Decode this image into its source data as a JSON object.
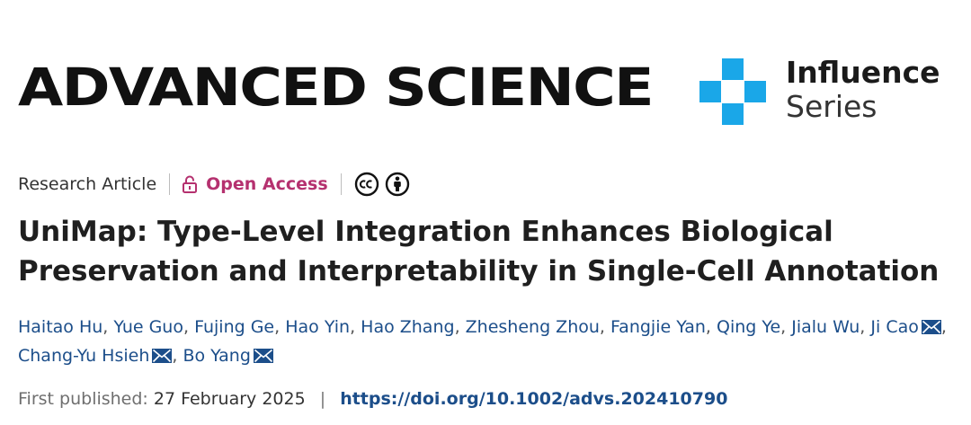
{
  "header": {
    "journal_name": "ADVANCED SCIENCE",
    "influence_line1": "Influence",
    "influence_line2": "Series",
    "influence_color": "#1aa7e8"
  },
  "article": {
    "type": "Research Article",
    "access": "Open Access",
    "access_color": "#b5316f",
    "license_icons": [
      "cc-icon",
      "by-attribution-icon"
    ],
    "title": "UniMap: Type-Level Integration Enhances Biological Preservation and Interpretability in Single-Cell Annotation",
    "authors": [
      {
        "name": "Haitao Hu",
        "corresponding": false
      },
      {
        "name": "Yue Guo",
        "corresponding": false
      },
      {
        "name": "Fujing Ge",
        "corresponding": false
      },
      {
        "name": "Hao Yin",
        "corresponding": false
      },
      {
        "name": "Hao Zhang",
        "corresponding": false
      },
      {
        "name": "Zhesheng Zhou",
        "corresponding": false
      },
      {
        "name": "Fangjie Yan",
        "corresponding": false
      },
      {
        "name": "Qing Ye",
        "corresponding": false
      },
      {
        "name": "Jialu Wu",
        "corresponding": false
      },
      {
        "name": "Ji Cao",
        "corresponding": true
      },
      {
        "name": "Chang-Yu Hsieh",
        "corresponding": true
      },
      {
        "name": "Bo Yang",
        "corresponding": true
      }
    ],
    "published_label": "First published:",
    "published_date": "27 February 2025",
    "separator": "|",
    "doi": "https://doi.org/10.1002/advs.202410790",
    "link_color": "#1c4e8a"
  }
}
